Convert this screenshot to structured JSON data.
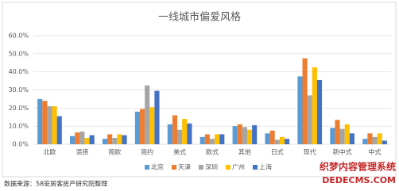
{
  "chart_data": {
    "type": "bar",
    "title": "一线城市偏爱风格",
    "categories": [
      "北欧",
      "混搭",
      "简欧",
      "简约",
      "美式",
      "欧式",
      "其他",
      "日式",
      "现代",
      "新中式",
      "中式"
    ],
    "series": [
      {
        "name": "北京",
        "color": "#5b9bd5",
        "values": [
          25,
          4.5,
          3,
          18,
          11,
          4,
          10,
          6,
          37.5,
          9,
          3
        ]
      },
      {
        "name": "天津",
        "color": "#ed7d31",
        "values": [
          24,
          6.5,
          5.5,
          19.5,
          16,
          5.5,
          11,
          7.5,
          47.5,
          13.5,
          6
        ]
      },
      {
        "name": "深圳",
        "color": "#a5a5a5",
        "values": [
          21,
          7,
          3.5,
          32.5,
          8,
          3,
          9.5,
          2.5,
          27,
          8.5,
          4
        ]
      },
      {
        "name": "广州",
        "color": "#ffc000",
        "values": [
          21,
          3.5,
          5.5,
          20.5,
          14,
          5.5,
          8,
          4,
          42.5,
          11,
          6
        ]
      },
      {
        "name": "上海",
        "color": "#4472c4",
        "values": [
          15.5,
          5,
          5,
          29.5,
          11.5,
          5.5,
          10.5,
          3,
          35.5,
          6,
          2
        ]
      }
    ],
    "ylim": [
      0,
      60
    ],
    "yticks": [
      {
        "value": 0,
        "label": "0.0%"
      },
      {
        "value": 10,
        "label": "10.0%"
      },
      {
        "value": 20,
        "label": "20.0%"
      },
      {
        "value": 30,
        "label": "30.0%"
      },
      {
        "value": 40,
        "label": "40.0%"
      },
      {
        "value": 50,
        "label": "50.0%"
      },
      {
        "value": 60,
        "label": "60.0%"
      }
    ],
    "grid": true,
    "legend": "bottom"
  },
  "source": "数据来源：58安居客房产研究院整理",
  "watermark": [
    "织梦内容管理系统",
    "DEDECMS.COM"
  ]
}
